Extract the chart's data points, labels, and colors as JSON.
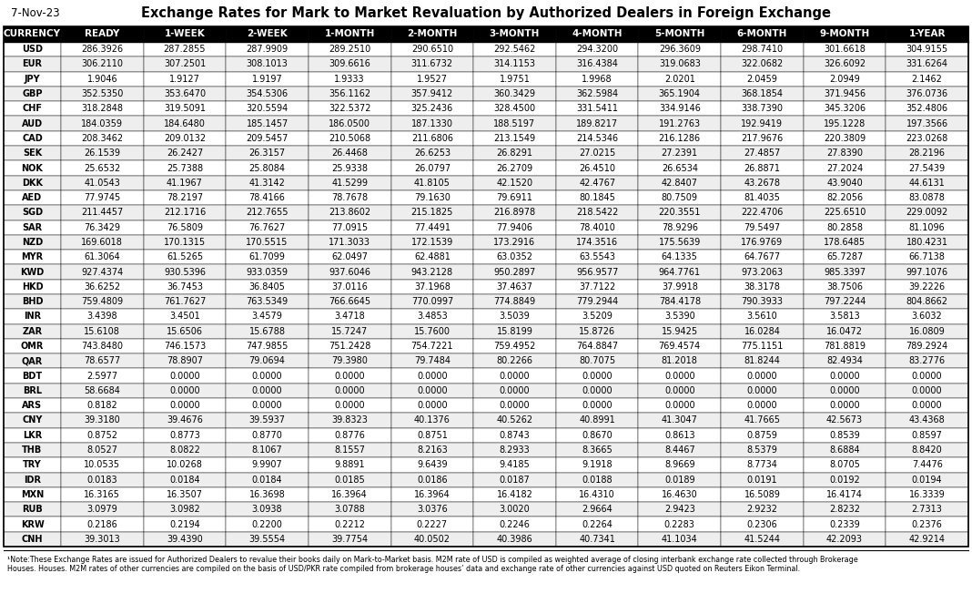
{
  "title": "Exchange Rates for Mark to Market Revaluation by Authorized Dealers in Foreign Exchange",
  "date": "7-Nov-23",
  "note": "¹Note:These Exchange Rates are issued for Authorized Dealers to revalue their books daily on Mark-to-Market basis. M2M rate of USD is compiled as weighted average of closing interbank exchange rate collected through Brokerage Houses. M2M rates of other currencies are compiled on the basis of USD/PKR rate compiled from brokerage houses’ data and exchange rate of other currencies against USD quoted on Reuters Eikon Terminal.",
  "columns": [
    "CURRENCY",
    "READY",
    "1-WEEK",
    "2-WEEK",
    "1-MONTH",
    "2-MONTH",
    "3-MONTH",
    "4-MONTH",
    "5-MONTH",
    "6-MONTH",
    "9-MONTH",
    "1-YEAR"
  ],
  "rows": [
    [
      "USD",
      "286.3926",
      "287.2855",
      "287.9909",
      "289.2510",
      "290.6510",
      "292.5462",
      "294.3200",
      "296.3609",
      "298.7410",
      "301.6618",
      "304.9155"
    ],
    [
      "EUR",
      "306.2110",
      "307.2501",
      "308.1013",
      "309.6616",
      "311.6732",
      "314.1153",
      "316.4384",
      "319.0683",
      "322.0682",
      "326.6092",
      "331.6264"
    ],
    [
      "JPY",
      "1.9046",
      "1.9127",
      "1.9197",
      "1.9333",
      "1.9527",
      "1.9751",
      "1.9968",
      "2.0201",
      "2.0459",
      "2.0949",
      "2.1462"
    ],
    [
      "GBP",
      "352.5350",
      "353.6470",
      "354.5306",
      "356.1162",
      "357.9412",
      "360.3429",
      "362.5984",
      "365.1904",
      "368.1854",
      "371.9456",
      "376.0736"
    ],
    [
      "CHF",
      "318.2848",
      "319.5091",
      "320.5594",
      "322.5372",
      "325.2436",
      "328.4500",
      "331.5411",
      "334.9146",
      "338.7390",
      "345.3206",
      "352.4806"
    ],
    [
      "AUD",
      "184.0359",
      "184.6480",
      "185.1457",
      "186.0500",
      "187.1330",
      "188.5197",
      "189.8217",
      "191.2763",
      "192.9419",
      "195.1228",
      "197.3566"
    ],
    [
      "CAD",
      "208.3462",
      "209.0132",
      "209.5457",
      "210.5068",
      "211.6806",
      "213.1549",
      "214.5346",
      "216.1286",
      "217.9676",
      "220.3809",
      "223.0268"
    ],
    [
      "SEK",
      "26.1539",
      "26.2427",
      "26.3157",
      "26.4468",
      "26.6253",
      "26.8291",
      "27.0215",
      "27.2391",
      "27.4857",
      "27.8390",
      "28.2196"
    ],
    [
      "NOK",
      "25.6532",
      "25.7388",
      "25.8084",
      "25.9338",
      "26.0797",
      "26.2709",
      "26.4510",
      "26.6534",
      "26.8871",
      "27.2024",
      "27.5439"
    ],
    [
      "DKK",
      "41.0543",
      "41.1967",
      "41.3142",
      "41.5299",
      "41.8105",
      "42.1520",
      "42.4767",
      "42.8407",
      "43.2678",
      "43.9040",
      "44.6131"
    ],
    [
      "AED",
      "77.9745",
      "78.2197",
      "78.4166",
      "78.7678",
      "79.1630",
      "79.6911",
      "80.1845",
      "80.7509",
      "81.4035",
      "82.2056",
      "83.0878"
    ],
    [
      "SGD",
      "211.4457",
      "212.1716",
      "212.7655",
      "213.8602",
      "215.1825",
      "216.8978",
      "218.5422",
      "220.3551",
      "222.4706",
      "225.6510",
      "229.0092"
    ],
    [
      "SAR",
      "76.3429",
      "76.5809",
      "76.7627",
      "77.0915",
      "77.4491",
      "77.9406",
      "78.4010",
      "78.9296",
      "79.5497",
      "80.2858",
      "81.1096"
    ],
    [
      "NZD",
      "169.6018",
      "170.1315",
      "170.5515",
      "171.3033",
      "172.1539",
      "173.2916",
      "174.3516",
      "175.5639",
      "176.9769",
      "178.6485",
      "180.4231"
    ],
    [
      "MYR",
      "61.3064",
      "61.5265",
      "61.7099",
      "62.0497",
      "62.4881",
      "63.0352",
      "63.5543",
      "64.1335",
      "64.7677",
      "65.7287",
      "66.7138"
    ],
    [
      "KWD",
      "927.4374",
      "930.5396",
      "933.0359",
      "937.6046",
      "943.2128",
      "950.2897",
      "956.9577",
      "964.7761",
      "973.2063",
      "985.3397",
      "997.1076"
    ],
    [
      "HKD",
      "36.6252",
      "36.7453",
      "36.8405",
      "37.0116",
      "37.1968",
      "37.4637",
      "37.7122",
      "37.9918",
      "38.3178",
      "38.7506",
      "39.2226"
    ],
    [
      "BHD",
      "759.4809",
      "761.7627",
      "763.5349",
      "766.6645",
      "770.0997",
      "774.8849",
      "779.2944",
      "784.4178",
      "790.3933",
      "797.2244",
      "804.8662"
    ],
    [
      "INR",
      "3.4398",
      "3.4501",
      "3.4579",
      "3.4718",
      "3.4853",
      "3.5039",
      "3.5209",
      "3.5390",
      "3.5610",
      "3.5813",
      "3.6032"
    ],
    [
      "ZAR",
      "15.6108",
      "15.6506",
      "15.6788",
      "15.7247",
      "15.7600",
      "15.8199",
      "15.8726",
      "15.9425",
      "16.0284",
      "16.0472",
      "16.0809"
    ],
    [
      "OMR",
      "743.8480",
      "746.1573",
      "747.9855",
      "751.2428",
      "754.7221",
      "759.4952",
      "764.8847",
      "769.4574",
      "775.1151",
      "781.8819",
      "789.2924"
    ],
    [
      "QAR",
      "78.6577",
      "78.8907",
      "79.0694",
      "79.3980",
      "79.7484",
      "80.2266",
      "80.7075",
      "81.2018",
      "81.8244",
      "82.4934",
      "83.2776"
    ],
    [
      "BDT",
      "2.5977",
      "0.0000",
      "0.0000",
      "0.0000",
      "0.0000",
      "0.0000",
      "0.0000",
      "0.0000",
      "0.0000",
      "0.0000",
      "0.0000"
    ],
    [
      "BRL",
      "58.6684",
      "0.0000",
      "0.0000",
      "0.0000",
      "0.0000",
      "0.0000",
      "0.0000",
      "0.0000",
      "0.0000",
      "0.0000",
      "0.0000"
    ],
    [
      "ARS",
      "0.8182",
      "0.0000",
      "0.0000",
      "0.0000",
      "0.0000",
      "0.0000",
      "0.0000",
      "0.0000",
      "0.0000",
      "0.0000",
      "0.0000"
    ],
    [
      "CNY",
      "39.3180",
      "39.4676",
      "39.5937",
      "39.8323",
      "40.1376",
      "40.5262",
      "40.8991",
      "41.3047",
      "41.7665",
      "42.5673",
      "43.4368"
    ],
    [
      "LKR",
      "0.8752",
      "0.8773",
      "0.8770",
      "0.8776",
      "0.8751",
      "0.8743",
      "0.8670",
      "0.8613",
      "0.8759",
      "0.8539",
      "0.8597"
    ],
    [
      "THB",
      "8.0527",
      "8.0822",
      "8.1067",
      "8.1557",
      "8.2163",
      "8.2933",
      "8.3665",
      "8.4467",
      "8.5379",
      "8.6884",
      "8.8420"
    ],
    [
      "TRY",
      "10.0535",
      "10.0268",
      "9.9907",
      "9.8891",
      "9.6439",
      "9.4185",
      "9.1918",
      "8.9669",
      "8.7734",
      "8.0705",
      "7.4476"
    ],
    [
      "IDR",
      "0.0183",
      "0.0184",
      "0.0184",
      "0.0185",
      "0.0186",
      "0.0187",
      "0.0188",
      "0.0189",
      "0.0191",
      "0.0192",
      "0.0194"
    ],
    [
      "MXN",
      "16.3165",
      "16.3507",
      "16.3698",
      "16.3964",
      "16.3964",
      "16.4182",
      "16.4310",
      "16.4630",
      "16.5089",
      "16.4174",
      "16.3339"
    ],
    [
      "RUB",
      "3.0979",
      "3.0982",
      "3.0938",
      "3.0788",
      "3.0376",
      "3.0020",
      "2.9664",
      "2.9423",
      "2.9232",
      "2.8232",
      "2.7313"
    ],
    [
      "KRW",
      "0.2186",
      "0.2194",
      "0.2200",
      "0.2212",
      "0.2227",
      "0.2246",
      "0.2264",
      "0.2283",
      "0.2306",
      "0.2339",
      "0.2376"
    ],
    [
      "CNH",
      "39.3013",
      "39.4390",
      "39.5554",
      "39.7754",
      "40.0502",
      "40.3986",
      "40.7341",
      "41.1034",
      "41.5244",
      "42.2093",
      "42.9214"
    ]
  ],
  "header_bg": "#000000",
  "header_fg": "#ffffff",
  "row_bg_odd": "#ffffff",
  "row_bg_even": "#eeeeee",
  "border_color": "#000000",
  "title_fontsize": 10.5,
  "header_fontsize": 7.5,
  "cell_fontsize": 7.0,
  "date_fontsize": 8.5,
  "note_fontsize": 5.8,
  "note_line2": "Houses. M2M rates of other currencies are compiled on the basis of USD/PKR rate compiled from brokerage houses’ data and exchange rate of other currencies against USD quoted on Reuters Eikon Terminal."
}
